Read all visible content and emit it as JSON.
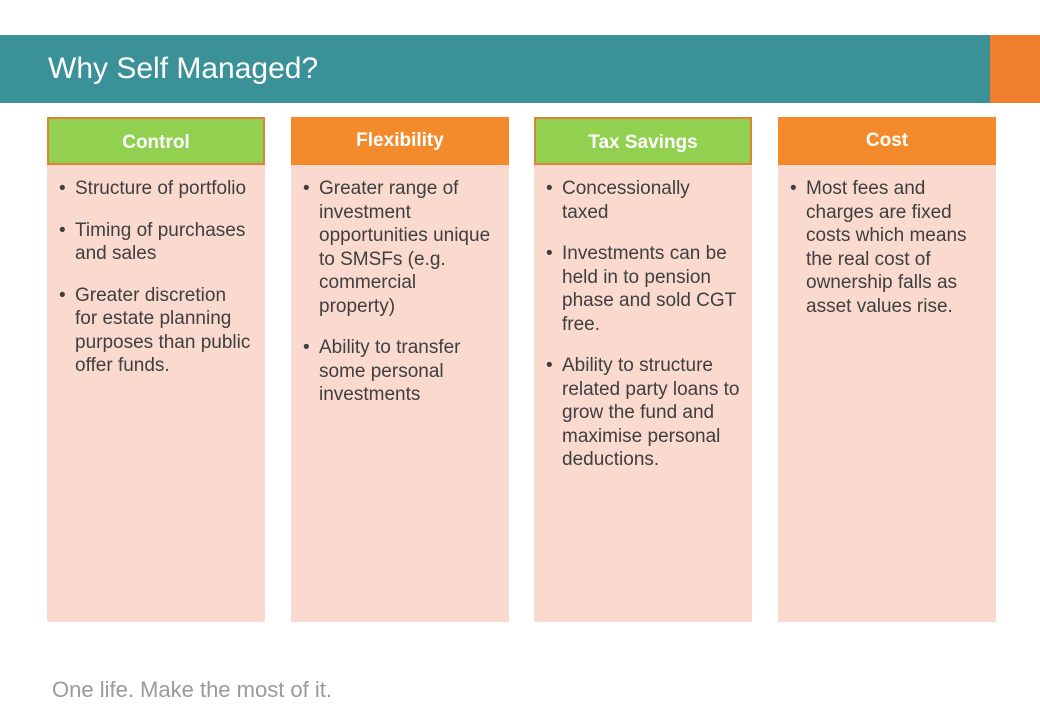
{
  "slide": {
    "title": "Why Self Managed?",
    "tagline": "One life. Make the most of it."
  },
  "colors": {
    "header_teal": "#3a9198",
    "accent_orange": "#f07f2d",
    "heading_green": "#91d14f",
    "heading_orange": "#f38b2c",
    "column_fill": "#fad9cf"
  },
  "columns": [
    {
      "heading": "Control",
      "heading_color": "green",
      "items": [
        "Structure of portfolio",
        "Timing of purchases and sales",
        "Greater discretion for estate planning purposes than public offer funds."
      ]
    },
    {
      "heading": "Flexibility",
      "heading_color": "orange",
      "items": [
        "Greater range of investment opportunities unique to SMSFs (e.g. commercial property)",
        "Ability to transfer some personal investments"
      ]
    },
    {
      "heading": "Tax Savings",
      "heading_color": "green",
      "items": [
        "Concessionally taxed",
        "Investments can be held in to pension phase and sold CGT free.",
        "Ability to structure related party loans to grow the fund and maximise personal deductions."
      ]
    },
    {
      "heading": "Cost",
      "heading_color": "orange",
      "items": [
        "Most fees and charges are fixed costs which means the real cost of ownership falls as asset values rise."
      ]
    }
  ]
}
